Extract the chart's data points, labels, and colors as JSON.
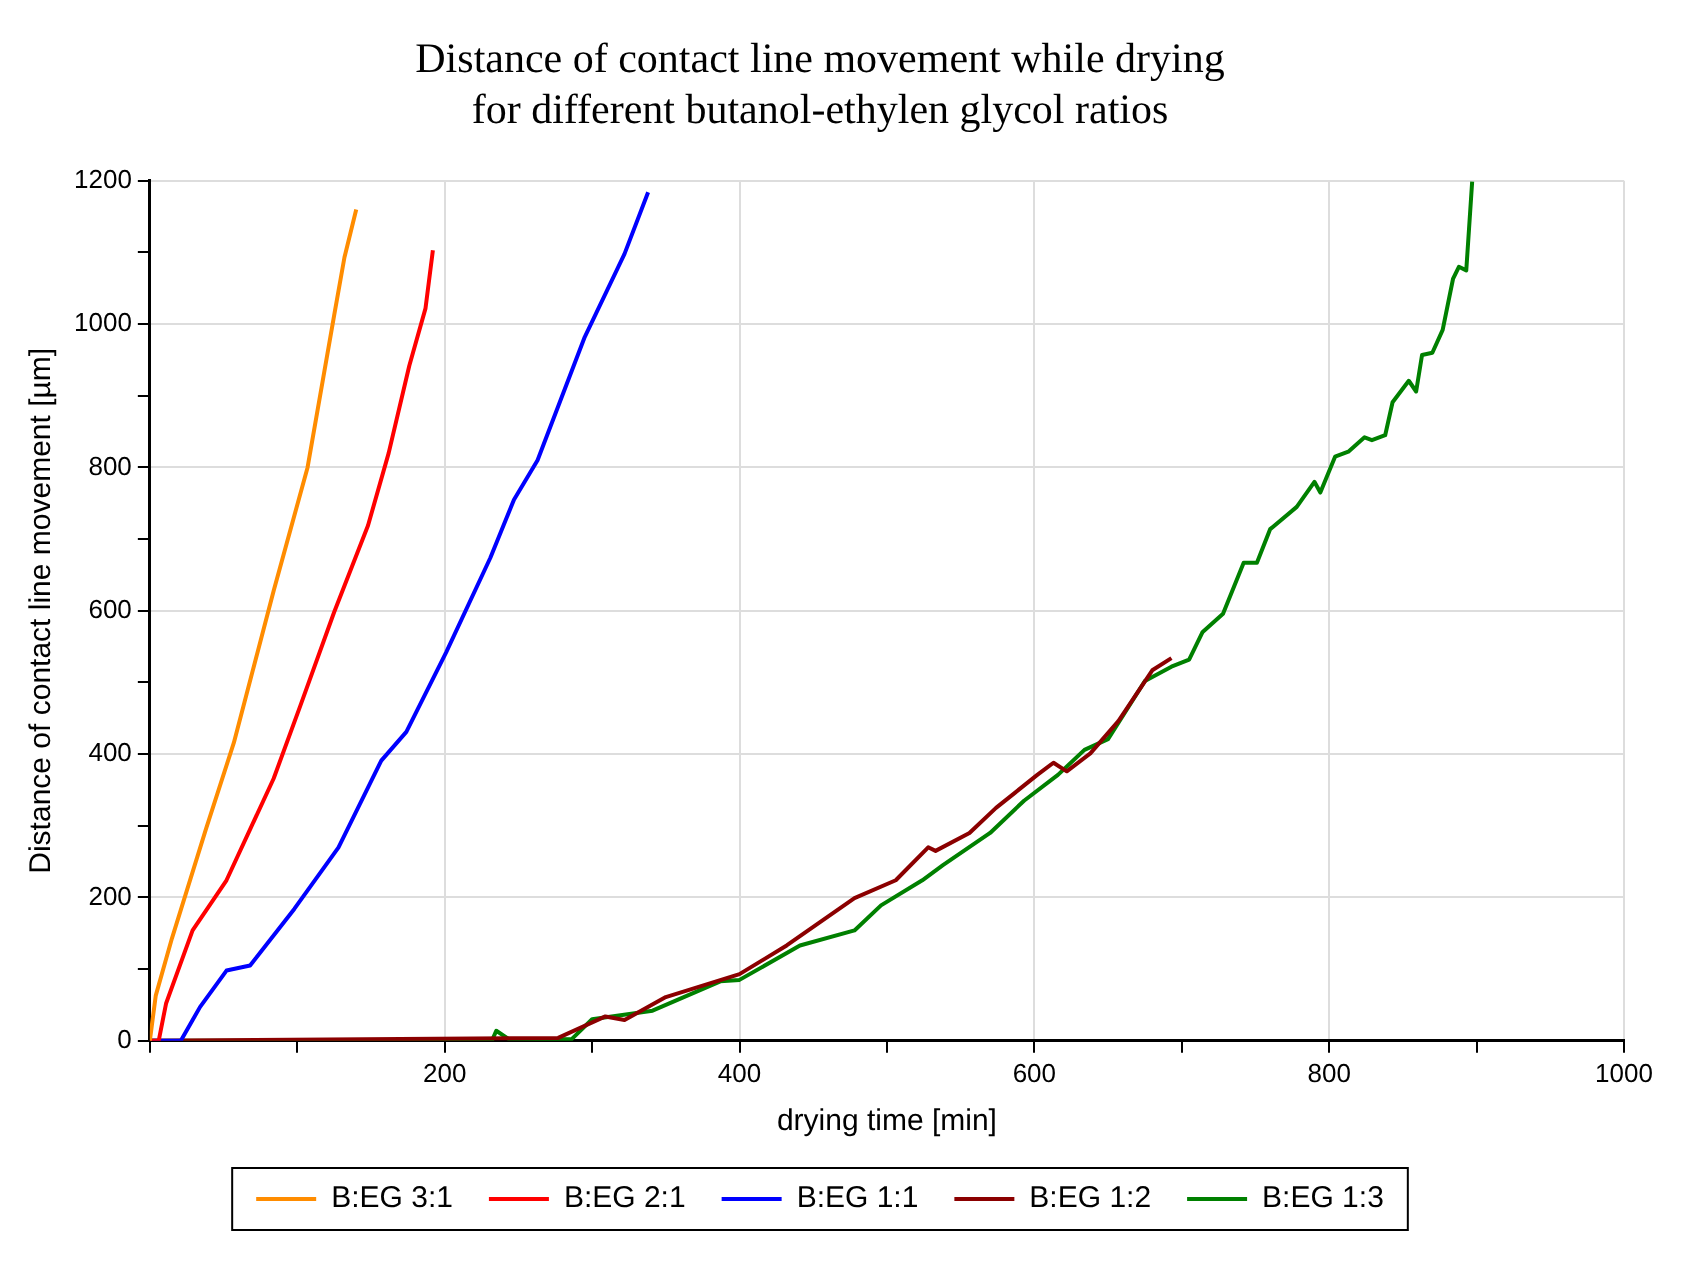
{
  "chart_data": {
    "type": "line",
    "title": "Distance of contact line movement while drying\nfor different butanol-ethylen glycol ratios",
    "xlabel": "drying time [min]",
    "ylabel": "Distance of contact line movement [µm]",
    "xlim": [
      0,
      1000
    ],
    "xticks": [
      {
        "value": 0,
        "label": null
      },
      {
        "value": 100,
        "label": null
      },
      200,
      {
        "value": 300,
        "label": null
      },
      400,
      {
        "value": 500,
        "label": null
      },
      600,
      {
        "value": 700,
        "label": null
      },
      800,
      {
        "value": 900,
        "label": null
      },
      1000
    ],
    "ylim": [
      0,
      1200
    ],
    "yticks": [
      0,
      {
        "value": 100,
        "label": null
      },
      200,
      {
        "value": 300,
        "label": null
      },
      400,
      {
        "value": 500,
        "label": null
      },
      600,
      {
        "value": 700,
        "label": null
      },
      800,
      {
        "value": 900,
        "label": null
      },
      1000,
      {
        "value": 1100,
        "label": null
      },
      1200
    ],
    "grid": true,
    "legend": "bottom",
    "marker": "none",
    "line_style": "solid",
    "series": [
      {
        "name": "B:EG 3:1",
        "color": "#ff8c00",
        "x": [
          0,
          4,
          15,
          38,
          57,
          84,
          107,
          125,
          132,
          140
        ],
        "values": [
          0,
          63,
          143,
          295,
          416,
          628,
          800,
          1012,
          1093,
          1160
        ]
      },
      {
        "name": "B:EG 2:1",
        "color": "#ff0000",
        "x": [
          0,
          6,
          11,
          29,
          52,
          68,
          84,
          102,
          125,
          148,
          162,
          176,
          187,
          192
        ],
        "values": [
          0,
          0,
          52,
          154,
          224,
          295,
          366,
          467,
          598,
          719,
          820,
          942,
          1022,
          1103
        ]
      },
      {
        "name": "B:EG 1:1",
        "color": "#0000ff",
        "x": [
          0,
          21,
          34,
          52,
          68,
          98,
          128,
          157,
          174,
          201,
          231,
          247,
          263,
          295,
          322,
          338
        ],
        "values": [
          0,
          0,
          47,
          98,
          105,
          184,
          270,
          391,
          431,
          542,
          674,
          755,
          810,
          982,
          1098,
          1184
        ]
      },
      {
        "name": "B:EG 1:2",
        "color": "#8b0000",
        "x": [
          0,
          277,
          309,
          322,
          350,
          400,
          432,
          478,
          506,
          528,
          533,
          556,
          574,
          602,
          613,
          622,
          638,
          657,
          680,
          693
        ],
        "values": [
          0,
          4,
          34,
          29,
          61,
          93,
          133,
          199,
          224,
          270,
          265,
          290,
          325,
          371,
          388,
          376,
          401,
          446,
          517,
          534
        ]
      },
      {
        "name": "B:EG 1:3",
        "color": "#008000",
        "x": [
          0,
          232,
          235,
          243,
          286,
          300,
          341,
          387,
          400,
          441,
          478,
          496,
          524,
          538,
          570,
          593,
          616,
          634,
          650,
          675,
          693,
          705,
          714,
          728,
          742,
          751,
          760,
          778,
          790,
          794,
          804,
          813,
          824,
          829,
          838,
          843,
          854,
          859,
          863,
          870,
          877,
          884,
          888,
          893,
          897
        ],
        "values": [
          0,
          0,
          14,
          3,
          2,
          30,
          42,
          83,
          85,
          133,
          154,
          189,
          224,
          245,
          290,
          335,
          371,
          406,
          421,
          502,
          522,
          532,
          570,
          596,
          667,
          667,
          714,
          745,
          780,
          765,
          815,
          822,
          842,
          838,
          845,
          891,
          921,
          906,
          957,
          960,
          992,
          1063,
          1080,
          1075,
          1199
        ]
      }
    ]
  }
}
